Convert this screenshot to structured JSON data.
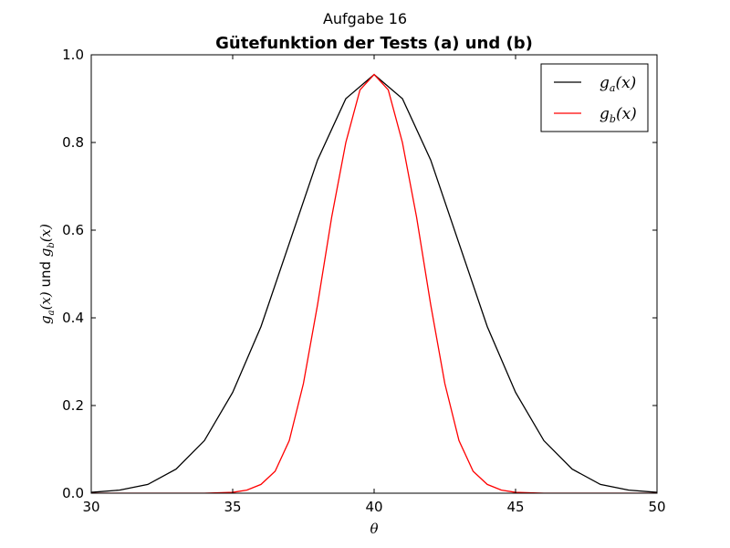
{
  "chart_data": {
    "type": "line",
    "suptitle": "Aufgabe 16",
    "title": "Gütefunktion der Tests (a) und (b)",
    "xlabel": "θ",
    "ylabel": "g_a(x) und g_b(x)",
    "ylabel_parts": {
      "a": "g",
      "a_sub": "a",
      "a_arg": "(x)",
      "mid": " und ",
      "b": "g",
      "b_sub": "b",
      "b_arg": "(x)"
    },
    "xlim": [
      30,
      50
    ],
    "ylim": [
      0.0,
      1.0
    ],
    "xticks": [
      30,
      35,
      40,
      45,
      50
    ],
    "xtick_labels": [
      "30",
      "35",
      "40",
      "45",
      "50"
    ],
    "yticks": [
      0.0,
      0.2,
      0.4,
      0.6,
      0.8,
      1.0
    ],
    "ytick_labels": [
      "0.0",
      "0.2",
      "0.4",
      "0.6",
      "0.8",
      "1.0"
    ],
    "grid": false,
    "legend_position": "top-right",
    "series": [
      {
        "name": "g_a(x)",
        "label_main": "g",
        "label_sub": "a",
        "label_arg": "(x)",
        "color": "#000000",
        "x": [
          30,
          31,
          32,
          33,
          34,
          35,
          36,
          37,
          38,
          39,
          40,
          41,
          42,
          43,
          44,
          45,
          46,
          47,
          48,
          49,
          50
        ],
        "y": [
          0.002,
          0.007,
          0.02,
          0.055,
          0.12,
          0.23,
          0.38,
          0.57,
          0.76,
          0.9,
          0.955,
          0.9,
          0.76,
          0.57,
          0.38,
          0.23,
          0.12,
          0.055,
          0.02,
          0.007,
          0.002
        ]
      },
      {
        "name": "g_b(x)",
        "label_main": "g",
        "label_sub": "b",
        "label_arg": "(x)",
        "color": "#ff0000",
        "x": [
          30,
          32,
          34,
          35,
          35.5,
          36,
          36.5,
          37,
          37.5,
          38,
          38.5,
          39,
          39.5,
          40,
          40.5,
          41,
          41.5,
          42,
          42.5,
          43,
          43.5,
          44,
          44.5,
          45,
          46,
          48,
          50
        ],
        "y": [
          0,
          0,
          0,
          0.002,
          0.007,
          0.02,
          0.05,
          0.12,
          0.25,
          0.43,
          0.63,
          0.8,
          0.92,
          0.955,
          0.92,
          0.8,
          0.63,
          0.43,
          0.25,
          0.12,
          0.05,
          0.02,
          0.007,
          0.002,
          0,
          0,
          0
        ]
      }
    ]
  }
}
